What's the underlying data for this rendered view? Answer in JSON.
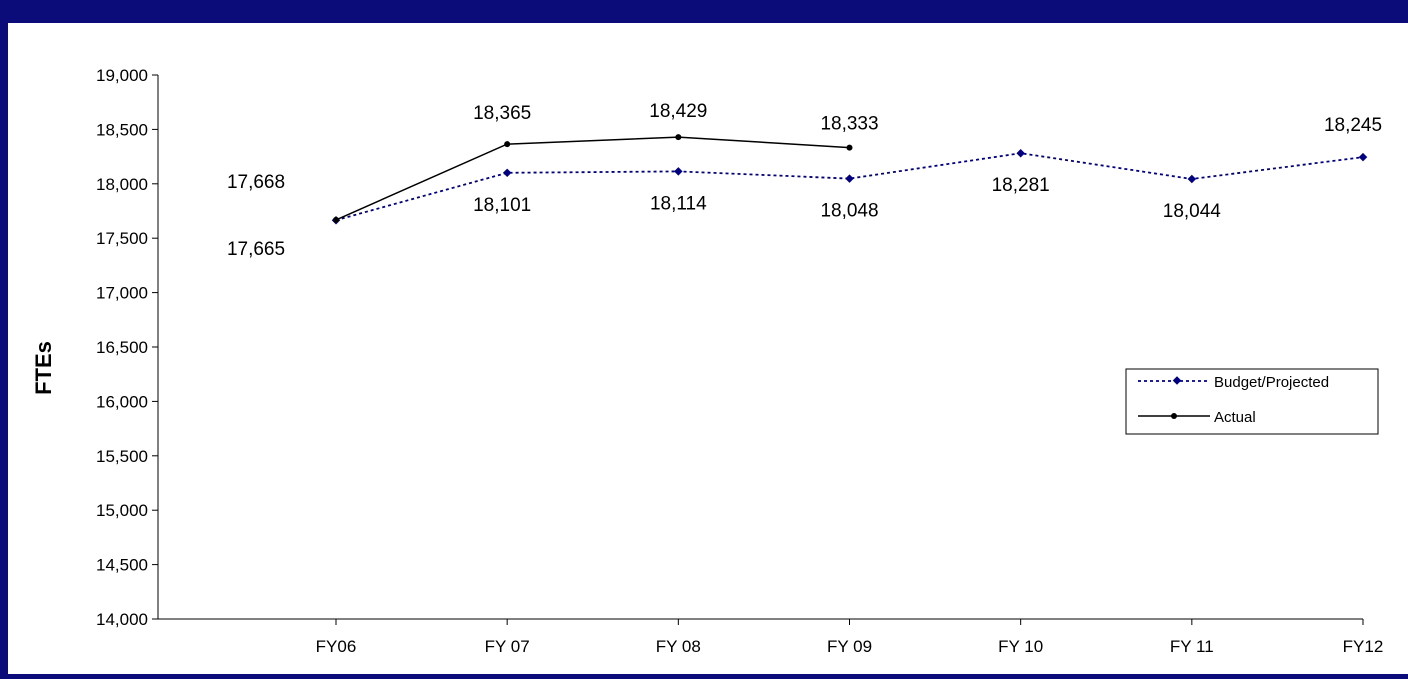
{
  "chart_data": {
    "type": "line",
    "title": "",
    "xlabel": "",
    "ylabel": "FTEs",
    "categories": [
      "FY06",
      "FY 07",
      "FY 08",
      "FY 09",
      "FY 10",
      "FY 11",
      "FY12"
    ],
    "ylim": [
      14000,
      19000
    ],
    "yticks": [
      14000,
      14500,
      15000,
      15500,
      16000,
      16500,
      17000,
      17500,
      18000,
      18500,
      19000
    ],
    "ytick_labels": [
      "14,000",
      "14,500",
      "15,000",
      "15,500",
      "16,000",
      "16,500",
      "17,000",
      "17,500",
      "18,000",
      "18,500",
      "19,000"
    ],
    "grid": false,
    "legend_position": "right",
    "series": [
      {
        "name": "Budget/Projected",
        "style": "dotted",
        "color": "#000080",
        "values": [
          17665,
          18101,
          18114,
          18048,
          18281,
          18044,
          18245
        ],
        "labels": [
          "17,665",
          "18,101",
          "18,114",
          "18,048",
          "18,281",
          "18,044",
          "18,245"
        ]
      },
      {
        "name": "Actual",
        "style": "solid",
        "color": "#000000",
        "values": [
          17668,
          18365,
          18429,
          18333,
          null,
          null,
          null
        ],
        "labels": [
          "17,668",
          "18,365",
          "18,429",
          "18,333",
          "",
          "",
          ""
        ]
      }
    ]
  }
}
